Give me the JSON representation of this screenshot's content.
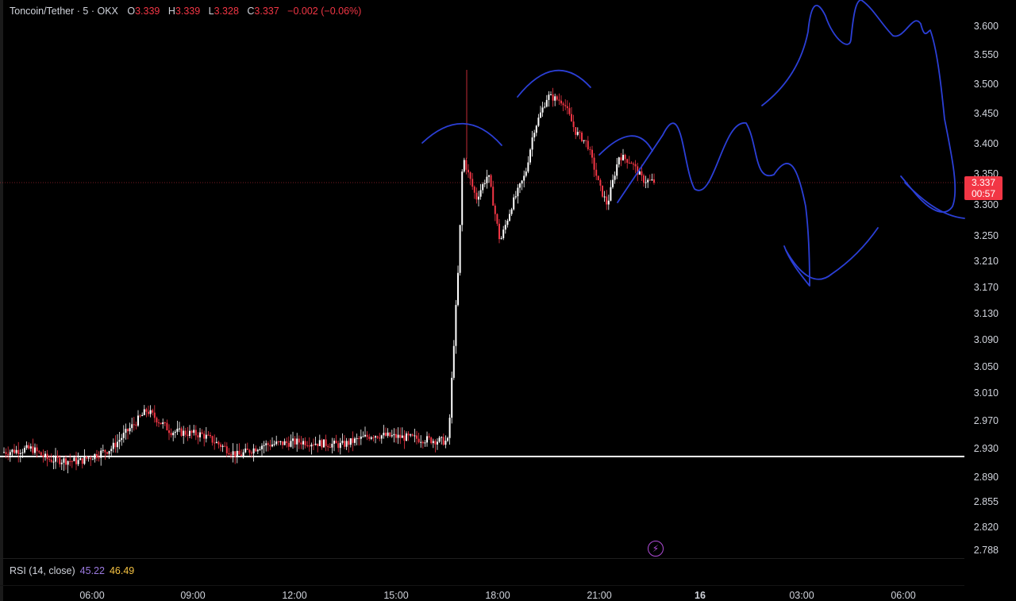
{
  "header": {
    "symbol": "Toncoin/Tether · 5 · OKX",
    "open_label": "O",
    "open": "3.339",
    "high_label": "H",
    "high": "3.339",
    "low_label": "L",
    "low": "3.328",
    "close_label": "C",
    "close": "3.337",
    "change": "−0.002 (−0.06%)"
  },
  "price_tag": {
    "price": "3.337",
    "countdown": "00:57"
  },
  "rsi": {
    "label": "RSI (14, close)",
    "value1": "45.22",
    "value2": "46.49"
  },
  "bolt_icon": "lightning-icon",
  "colors": {
    "up": "#ffffff",
    "down": "#f23645",
    "drawing": "#2b3fd6",
    "background": "#000000"
  },
  "chart_data": {
    "type": "candlestick",
    "y_axis_ticks": [
      "3.600",
      "3.550",
      "3.500",
      "3.450",
      "3.400",
      "3.350",
      "3.300",
      "3.250",
      "3.210",
      "3.170",
      "3.130",
      "3.090",
      "3.050",
      "3.010",
      "2.970",
      "2.930",
      "2.890",
      "2.855",
      "2.820",
      "2.788"
    ],
    "x_axis_ticks": [
      {
        "label": "06:00",
        "bold": false
      },
      {
        "label": "09:00",
        "bold": false
      },
      {
        "label": "12:00",
        "bold": false
      },
      {
        "label": "15:00",
        "bold": false
      },
      {
        "label": "18:00",
        "bold": false
      },
      {
        "label": "21:00",
        "bold": false
      },
      {
        "label": "16",
        "bold": true
      },
      {
        "label": "03:00",
        "bold": false
      },
      {
        "label": "06:00",
        "bold": false
      }
    ],
    "support_level": 2.925,
    "current_price": 3.337,
    "series_keypoints": [
      [
        4,
        2.925
      ],
      [
        40,
        2.93
      ],
      [
        60,
        2.915
      ],
      [
        100,
        2.912
      ],
      [
        140,
        2.93
      ],
      [
        185,
        2.985
      ],
      [
        215,
        2.955
      ],
      [
        255,
        2.95
      ],
      [
        300,
        2.92
      ],
      [
        330,
        2.935
      ],
      [
        380,
        2.94
      ],
      [
        430,
        2.935
      ],
      [
        470,
        2.95
      ],
      [
        520,
        2.945
      ],
      [
        565,
        2.94
      ],
      [
        572,
        3.09
      ],
      [
        578,
        3.21
      ],
      [
        583,
        3.38
      ],
      [
        590,
        3.35
      ],
      [
        600,
        3.31
      ],
      [
        615,
        3.35
      ],
      [
        630,
        3.24
      ],
      [
        645,
        3.3
      ],
      [
        662,
        3.35
      ],
      [
        672,
        3.42
      ],
      [
        690,
        3.48
      ],
      [
        710,
        3.47
      ],
      [
        725,
        3.42
      ],
      [
        740,
        3.4
      ],
      [
        755,
        3.33
      ],
      [
        765,
        3.3
      ],
      [
        780,
        3.38
      ],
      [
        795,
        3.37
      ],
      [
        810,
        3.34
      ],
      [
        825,
        3.337
      ]
    ]
  }
}
